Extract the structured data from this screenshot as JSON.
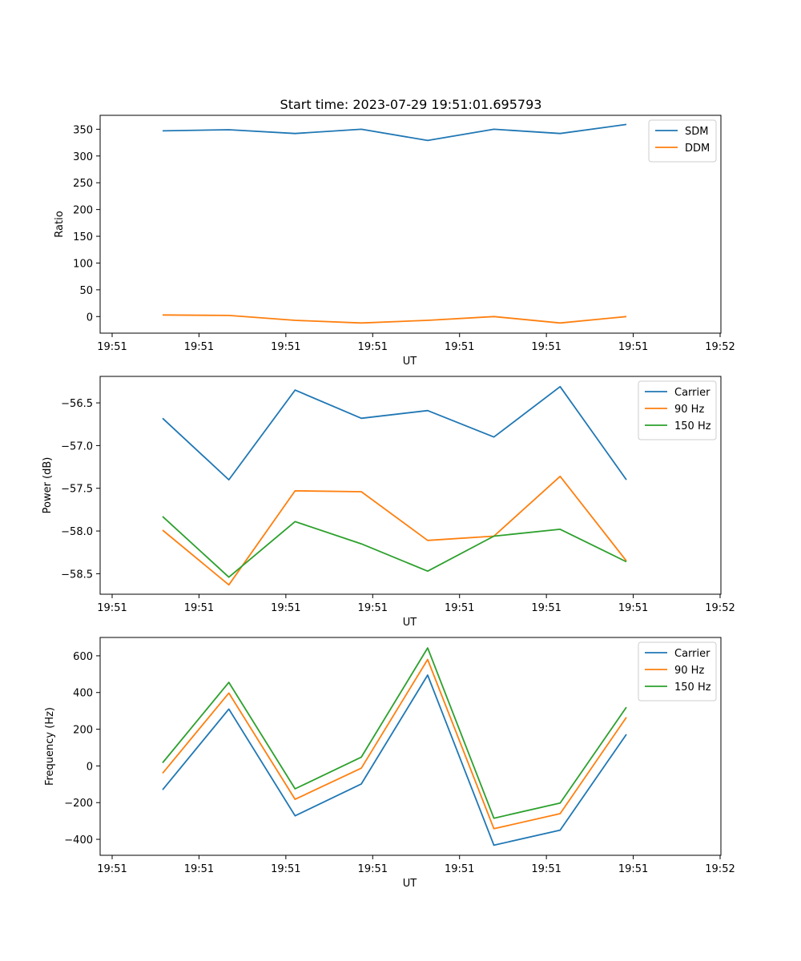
{
  "figure_title": "Start time: 2023-07-29 19:51:01.695793",
  "colors": {
    "blue": "#1f77b4",
    "orange": "#ff7f0e",
    "green": "#2ca02c"
  },
  "chart_data": [
    {
      "type": "line",
      "title": "Start time: 2023-07-29 19:51:01.695793",
      "xlabel": "UT",
      "ylabel": "Ratio",
      "x_tick_labels": [
        "19:51",
        "19:51",
        "19:51",
        "19:51",
        "19:51",
        "19:51",
        "19:51"
      ],
      "x_tick_label_end": "19:52",
      "ylim": [
        -31,
        376
      ],
      "y_ticks": [
        0,
        50,
        100,
        150,
        200,
        250,
        300,
        350
      ],
      "y_tick_labels": [
        "0",
        "50",
        "100",
        "150",
        "200",
        "250",
        "300",
        "350"
      ],
      "x_points": [
        1,
        2,
        3,
        4,
        5,
        6,
        7,
        8
      ],
      "series": [
        {
          "name": "SDM",
          "color": "#1f77b4",
          "values": [
            347,
            349,
            342,
            350,
            329,
            350,
            342,
            359
          ]
        },
        {
          "name": "DDM",
          "color": "#ff7f0e",
          "values": [
            3,
            2,
            -7,
            -12,
            -7,
            0,
            -12,
            0
          ]
        }
      ],
      "legend": "upper-right"
    },
    {
      "type": "line",
      "title": "",
      "xlabel": "UT",
      "ylabel": "Power (dB)",
      "x_tick_labels": [
        "19:51",
        "19:51",
        "19:51",
        "19:51",
        "19:51",
        "19:51",
        "19:51"
      ],
      "x_tick_label_end": "19:52",
      "ylim": [
        -58.74,
        -56.19
      ],
      "y_ticks": [
        -58.5,
        -58.0,
        -57.5,
        -57.0,
        -56.5
      ],
      "y_tick_labels": [
        "−58.5",
        "−58.0",
        "−57.5",
        "−57.0",
        "−56.5"
      ],
      "x_points": [
        1,
        2,
        3,
        4,
        5,
        6,
        7,
        8
      ],
      "series": [
        {
          "name": "Carrier",
          "color": "#1f77b4",
          "values": [
            -56.68,
            -57.4,
            -56.35,
            -56.68,
            -56.59,
            -56.9,
            -56.31,
            -57.4
          ]
        },
        {
          "name": "90 Hz",
          "color": "#ff7f0e",
          "values": [
            -57.99,
            -58.63,
            -57.53,
            -57.54,
            -58.11,
            -58.06,
            -57.36,
            -58.35
          ]
        },
        {
          "name": "150 Hz",
          "color": "#2ca02c",
          "values": [
            -57.83,
            -58.54,
            -57.89,
            -58.15,
            -58.47,
            -58.06,
            -57.98,
            -58.36
          ]
        }
      ],
      "legend": "upper-right"
    },
    {
      "type": "line",
      "title": "",
      "xlabel": "UT",
      "ylabel": "Frequency (Hz)",
      "x_tick_labels": [
        "19:51",
        "19:51",
        "19:51",
        "19:51",
        "19:51",
        "19:51",
        "19:51"
      ],
      "x_tick_label_end": "19:52",
      "ylim": [
        -487,
        700
      ],
      "y_ticks": [
        -400,
        -200,
        0,
        200,
        400,
        600
      ],
      "y_tick_labels": [
        "−400",
        "−200",
        "0",
        "200",
        "400",
        "600"
      ],
      "x_points": [
        1,
        2,
        3,
        4,
        5,
        6,
        7,
        8
      ],
      "series": [
        {
          "name": "Carrier",
          "color": "#1f77b4",
          "values": [
            -130,
            310,
            -272,
            -98,
            495,
            -432,
            -350,
            172
          ]
        },
        {
          "name": "90 Hz",
          "color": "#ff7f0e",
          "values": [
            -40,
            397,
            -182,
            -12,
            580,
            -342,
            -260,
            265
          ]
        },
        {
          "name": "150 Hz",
          "color": "#2ca02c",
          "values": [
            17,
            455,
            -125,
            48,
            643,
            -285,
            -202,
            320
          ]
        }
      ],
      "legend": "upper-right"
    }
  ]
}
